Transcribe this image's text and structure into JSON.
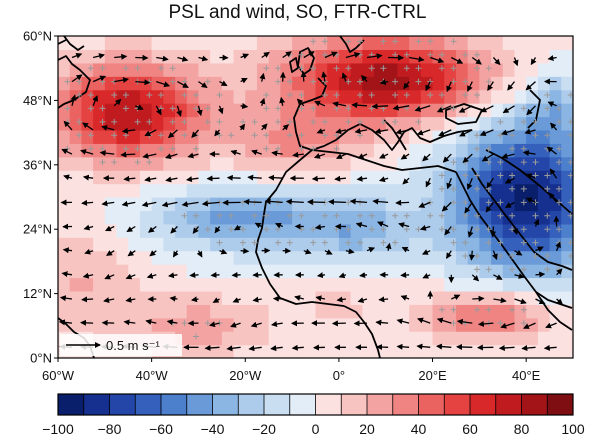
{
  "title": "PSL and wind, SO, FTR-CTRL",
  "map": {
    "lat_range": [
      0,
      60
    ],
    "lon_range": [
      -60,
      50
    ],
    "lat_ticks": [
      "0°N",
      "12°N",
      "24°N",
      "36°N",
      "48°N",
      "60°N"
    ],
    "lon_ticks": [
      "60°W",
      "40°W",
      "20°W",
      "0°",
      "20°E",
      "40°E"
    ],
    "reference_vector_label": "0.5 m s⁻¹",
    "fields": [
      "sea level pressure difference (shaded)",
      "wind difference (arrows)",
      "significance (+ markers)"
    ]
  },
  "colorbar": {
    "min": -100,
    "max": 100,
    "tick_labels": [
      "−100",
      "−80",
      "−60",
      "−40",
      "−20",
      "0",
      "20",
      "40",
      "60",
      "80",
      "100"
    ],
    "colors": [
      "#0a1f6b",
      "#15308f",
      "#2346a8",
      "#3560bb",
      "#4c7fcc",
      "#6a9bd8",
      "#8bb5e3",
      "#adcbeb",
      "#cadef2",
      "#e3edf8",
      "#fbe1e0",
      "#f8c4c2",
      "#f3a4a2",
      "#ef8482",
      "#ea6361",
      "#e54342",
      "#d9282a",
      "#c01b1f",
      "#a31418",
      "#7e0e12"
    ]
  }
}
